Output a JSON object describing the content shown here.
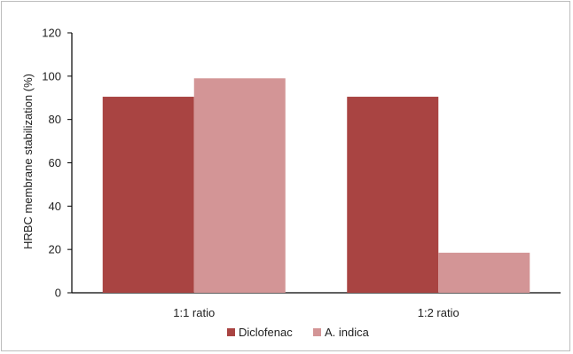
{
  "chart_data": {
    "type": "bar",
    "categories": [
      "1:1 ratio",
      "1:2 ratio"
    ],
    "series": [
      {
        "name": "Diclofenac",
        "values": [
          90.5,
          90.5
        ],
        "color": "#a94442"
      },
      {
        "name": "A. indica",
        "values": [
          99,
          18.5
        ],
        "color": "#d39596"
      }
    ],
    "ylabel": "HRBC membrane stabilization  (%)",
    "xlabel": "",
    "ylim": [
      0,
      120
    ],
    "yticks": [
      "0",
      "20",
      "40",
      "60",
      "80",
      "100",
      "120"
    ],
    "grid": false,
    "legend": "bottom-center"
  }
}
